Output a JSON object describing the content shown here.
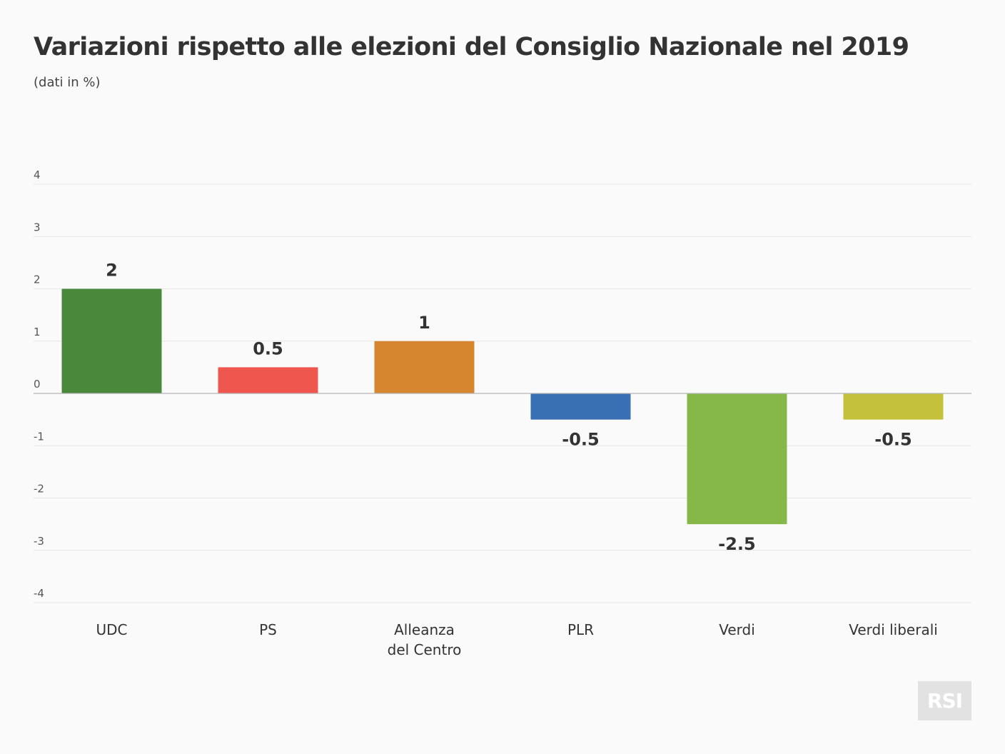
{
  "chart_data": {
    "type": "bar",
    "title": "Variazioni rispetto alle elezioni del Consiglio Nazionale nel 2019",
    "subtitle": "(dati in %)",
    "xlabel": "",
    "ylabel": "",
    "ylim": [
      -4,
      4
    ],
    "yticks": [
      4,
      3,
      2,
      1,
      0,
      -1,
      -2,
      -3,
      -4
    ],
    "grid": true,
    "categories": [
      [
        "UDC"
      ],
      [
        "PS"
      ],
      [
        "Alleanza",
        "del Centro"
      ],
      [
        "PLR"
      ],
      [
        "Verdi"
      ],
      [
        "Verdi liberali"
      ]
    ],
    "values": [
      2,
      0.5,
      1,
      -0.5,
      -2.5,
      -0.5
    ],
    "value_labels": [
      "2",
      "0.5",
      "1",
      "-0.5",
      "-2.5",
      "-0.5"
    ],
    "colors": [
      "#4a883b",
      "#ef564e",
      "#d5862f",
      "#3970b3",
      "#86b749",
      "#c4c23b"
    ]
  },
  "branding": {
    "logo_text": "RSI"
  }
}
